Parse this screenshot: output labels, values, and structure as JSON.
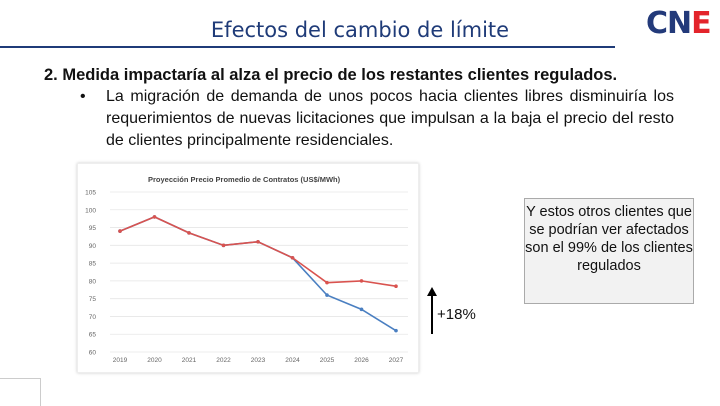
{
  "header": {
    "title": "Efectos del cambio de límite"
  },
  "logo": {
    "text": "CNE",
    "colors": {
      "blue": "#233a7a",
      "red": "#e3242b"
    }
  },
  "content": {
    "point": "2.  Medida impactaría al alza el precio de los restantes clientes regulados.",
    "bullet_mark": "•",
    "bullet_text": "La migración de demanda de unos pocos hacia clientes libres disminuiría los requerimientos de nuevas licitaciones que impulsan a la baja el precio del resto de clientes principalmente residenciales."
  },
  "note": {
    "text": "Y estos otros clientes que se podrían ver afectados son el 99% de los clientes regulados"
  },
  "annotation": {
    "text": "+18%"
  },
  "chart_data": {
    "type": "line",
    "title": "Proyección Precio  Promedio de Contratos  (US$/MWh)",
    "categories": [
      "2019",
      "2020",
      "2021",
      "2022",
      "2023",
      "2024",
      "2025",
      "2026",
      "2027"
    ],
    "yticks": [
      "105",
      "100",
      "95",
      "90",
      "85",
      "80",
      "75",
      "70",
      "65",
      "60"
    ],
    "ylim": [
      60,
      105
    ],
    "series": [
      {
        "color": "#d9534f",
        "values": [
          94,
          98,
          93.5,
          90,
          91,
          86.5,
          79.5,
          80,
          78.5
        ]
      },
      {
        "color": "#4a7fc1",
        "values": [
          94,
          98,
          93.5,
          90,
          91,
          86.5,
          76,
          72,
          66
        ]
      }
    ]
  }
}
